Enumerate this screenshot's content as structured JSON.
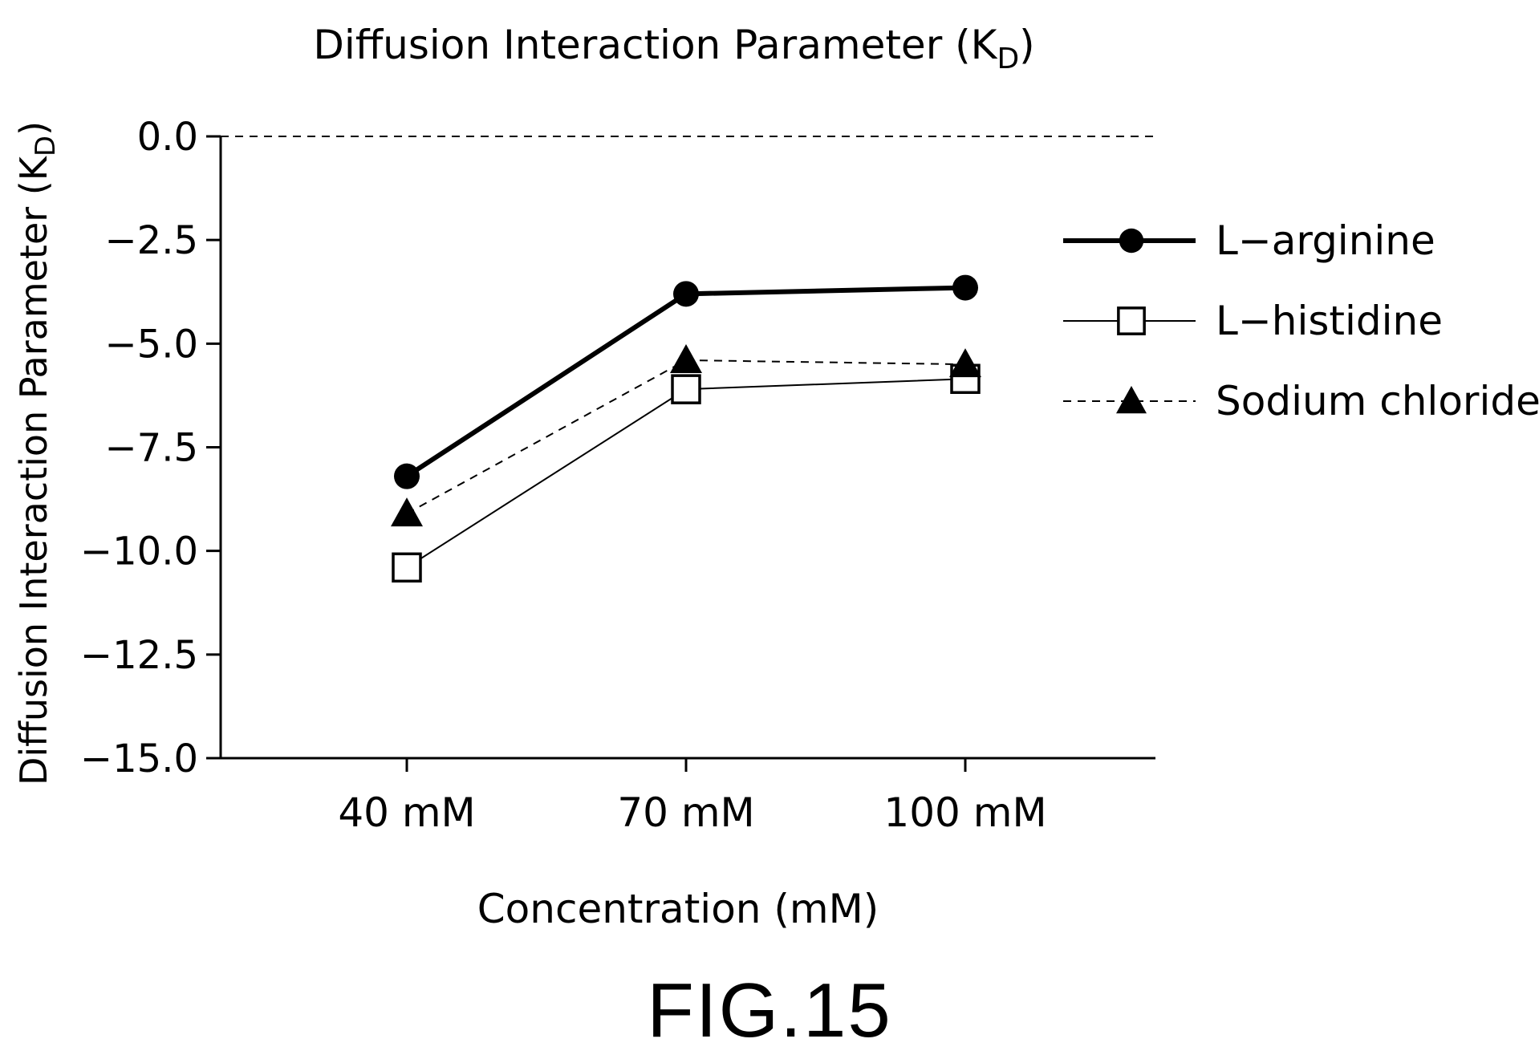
{
  "figure_label": "FIG.15",
  "chart_data": {
    "type": "line",
    "title": "Diffusion Interaction Parameter (K",
    "title_subscript": "D",
    "title_suffix": ")",
    "ylabel": "Diffusion Interaction Parameter (K",
    "ylabel_subscript": "D",
    "ylabel_suffix": ")",
    "xlabel": "Concentration (mM)",
    "categories": [
      "40 mM",
      "70 mM",
      "100 mM"
    ],
    "ylim": [
      -15.0,
      0.0
    ],
    "yticks": [
      0.0,
      -2.5,
      -5.0,
      -7.5,
      -10.0,
      -12.5,
      -15.0
    ],
    "ytick_labels": [
      "0.0",
      "−2.5",
      "−5.0",
      "−7.5",
      "−10.0",
      "−12.5",
      "−15.0"
    ],
    "reference_line": {
      "y": 0.0,
      "style": "dashed"
    },
    "legend_position": "right",
    "grid": false,
    "series": [
      {
        "name": "L−arginine",
        "values": [
          -8.2,
          -3.8,
          -3.65
        ],
        "marker": "filled-circle",
        "line": "thick-solid",
        "color": "#000000"
      },
      {
        "name": "L−histidine",
        "values": [
          -10.4,
          -6.1,
          -5.85
        ],
        "marker": "open-square",
        "line": "thin-solid",
        "color": "#000000"
      },
      {
        "name": "Sodium chloride",
        "values": [
          -9.1,
          -5.4,
          -5.5
        ],
        "marker": "filled-triangle",
        "line": "dashed",
        "color": "#000000"
      }
    ]
  }
}
